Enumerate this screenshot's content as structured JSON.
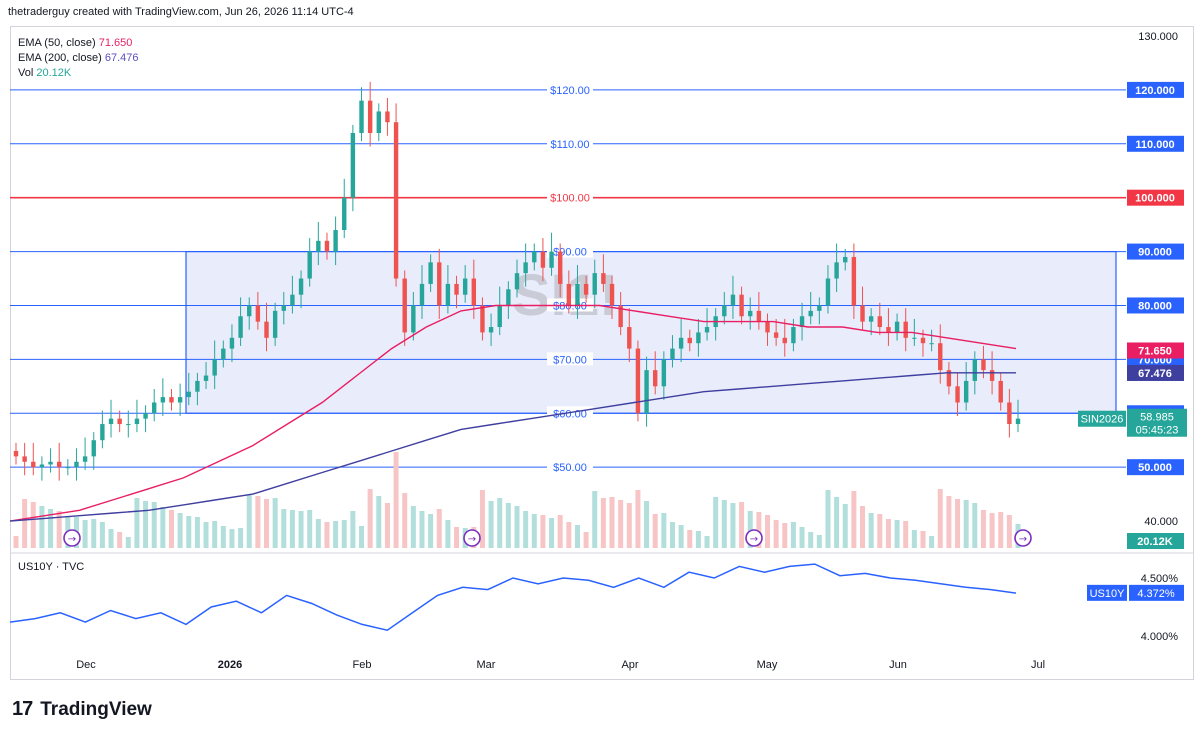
{
  "header": {
    "attribution": "thetraderguy created with TradingView.com, Jun 26, 2026 11:14 UTC-4"
  },
  "legend": {
    "ema50_label": "EMA (50, close)",
    "ema50_value": "71.650",
    "ema200_label": "EMA (200, close)",
    "ema200_value": "67.476",
    "vol_label": "Vol",
    "vol_value": "20.12K"
  },
  "sub_legend": "US10Y · TVC",
  "watermark": "SI1!",
  "footer": {
    "logo": "17",
    "brand": "TradingView"
  },
  "colors": {
    "up": "#26a69a",
    "down": "#ef5350",
    "ema50": "#e91e63",
    "ema200": "#3f3fa0",
    "hline": "#2962ff",
    "redline": "#f23645",
    "box": "#e8ecfb"
  },
  "price_axis": {
    "ticks": [
      "130.000",
      "120.000",
      "110.000",
      "100.000",
      "90.000",
      "80.000",
      "70.000",
      "60.000",
      "50.000",
      "40.000"
    ],
    "min": 35,
    "max": 130
  },
  "time_axis": {
    "labels": [
      "Dec",
      "2026",
      "Feb",
      "Mar",
      "Apr",
      "May",
      "Jun",
      "Jul"
    ]
  },
  "hlines": [
    {
      "price": 120,
      "label": "$120.00",
      "tag": "120.000",
      "color": "#2962ff"
    },
    {
      "price": 110,
      "label": "$110.00",
      "tag": "110.000",
      "color": "#2962ff"
    },
    {
      "price": 100,
      "label": "$100.00",
      "tag": "100.000",
      "color": "#f23645"
    },
    {
      "price": 90,
      "label": "$90.00",
      "tag": "90.000",
      "color": "#2962ff"
    },
    {
      "price": 80,
      "label": "$80.00",
      "tag": "80.000",
      "color": "#2962ff"
    },
    {
      "price": 70,
      "label": "$70.00",
      "tag": "70.000",
      "color": "#2962ff"
    },
    {
      "price": 60,
      "label": "$60.00",
      "tag": "60.000",
      "color": "#2962ff"
    },
    {
      "price": 50,
      "label": "$50.00",
      "tag": "50.000",
      "color": "#2962ff"
    }
  ],
  "tags": {
    "ema50": "71.650",
    "ema200": "67.476",
    "symbol": "SIN2026",
    "last": "58.985",
    "countdown": "05:45:23",
    "vol": "20.12K",
    "us10y": "US10Y",
    "us10y_value": "4.372%"
  },
  "sub_axis": {
    "ticks": [
      "4.500%",
      "4.000%"
    ]
  },
  "chart_data": {
    "type": "candlestick",
    "symbol": "SI1!",
    "contract": "SIN2026",
    "last_price": 58.985,
    "range_box": {
      "from": "Dec 2025",
      "to": "Jun 2026",
      "low": 60,
      "high": 90
    },
    "closes": [
      52,
      51,
      50,
      50.5,
      51,
      50,
      50,
      51,
      52,
      55,
      58,
      59,
      58,
      58,
      59,
      60,
      62,
      63,
      62,
      63,
      64,
      66,
      67,
      70,
      72,
      74,
      78,
      80,
      77,
      74,
      79,
      80,
      82,
      85,
      90,
      92,
      90,
      94,
      100,
      112,
      118,
      112,
      116,
      114,
      85,
      75,
      80,
      84,
      88,
      80,
      84,
      82,
      85,
      80,
      75,
      76,
      80,
      83,
      86,
      88,
      90,
      87,
      90,
      84,
      80,
      84,
      82,
      86,
      84,
      80,
      76,
      72,
      60,
      68,
      65,
      70,
      72,
      74,
      73,
      75,
      76,
      78,
      80,
      82,
      78,
      79,
      77,
      75,
      74,
      73,
      76,
      78,
      79,
      80,
      85,
      88,
      89,
      80,
      77,
      78,
      76,
      75,
      77,
      74,
      74,
      73,
      73,
      68,
      65,
      62,
      66,
      70,
      68,
      66,
      62,
      58,
      59
    ],
    "ema50": [
      40,
      41,
      42,
      44,
      46,
      48,
      51,
      54,
      58,
      62,
      67,
      72,
      76,
      79,
      80,
      80,
      80,
      80,
      79,
      78,
      77,
      77,
      77,
      76,
      76,
      75,
      75,
      74,
      73,
      72
    ],
    "ema200": [
      40,
      40.5,
      41,
      41.5,
      42,
      43,
      44,
      45,
      47,
      49,
      51,
      53,
      55,
      57,
      58,
      59,
      60,
      61,
      62,
      63,
      64,
      64.5,
      65,
      65.5,
      66,
      66.5,
      67,
      67.5,
      67.5,
      67.5
    ],
    "volume": "20.12K",
    "us10y": [
      4.12,
      4.15,
      4.2,
      4.12,
      4.22,
      4.15,
      4.2,
      4.1,
      4.25,
      4.3,
      4.2,
      4.35,
      4.28,
      4.18,
      4.1,
      4.05,
      4.2,
      4.35,
      4.42,
      4.4,
      4.5,
      4.45,
      4.5,
      4.48,
      4.42,
      4.5,
      4.42,
      4.55,
      4.5,
      4.6,
      4.55,
      4.6,
      4.62,
      4.52,
      4.54,
      4.5,
      4.48,
      4.45,
      4.42,
      4.4,
      4.37
    ],
    "ylim": [
      35,
      130
    ]
  }
}
